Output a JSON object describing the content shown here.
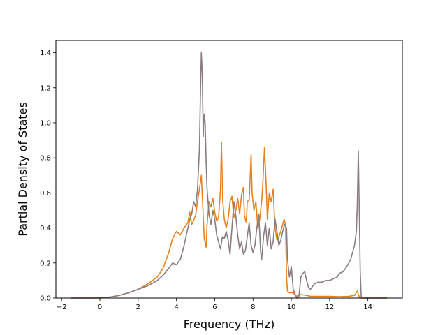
{
  "chart_data": {
    "type": "line",
    "title": "",
    "xlabel": "Frequency (THz)",
    "ylabel": "Partial Density of States",
    "xlim": [
      -2.3,
      15.8
    ],
    "ylim": [
      0,
      1.47
    ],
    "xticks": [
      -2,
      0,
      2,
      4,
      6,
      8,
      10,
      12,
      14
    ],
    "yticks": [
      0.0,
      0.2,
      0.4,
      0.6,
      0.8,
      1.0,
      1.2,
      1.4
    ],
    "xtick_labels": [
      "−2",
      "0",
      "2",
      "4",
      "6",
      "8",
      "10",
      "12",
      "14"
    ],
    "ytick_labels": [
      "0.0",
      "0.2",
      "0.4",
      "0.6",
      "0.8",
      "1.0",
      "1.2",
      "1.4"
    ],
    "grid": false,
    "legend": "none",
    "series": [
      {
        "color": "#e8801f",
        "points": [
          [
            -1.5,
            0.0
          ],
          [
            0.0,
            0.0
          ],
          [
            0.5,
            0.005
          ],
          [
            1.0,
            0.015
          ],
          [
            1.5,
            0.03
          ],
          [
            2.0,
            0.05
          ],
          [
            2.5,
            0.08
          ],
          [
            3.0,
            0.12
          ],
          [
            3.3,
            0.17
          ],
          [
            3.6,
            0.26
          ],
          [
            3.8,
            0.34
          ],
          [
            4.0,
            0.38
          ],
          [
            4.2,
            0.36
          ],
          [
            4.4,
            0.4
          ],
          [
            4.6,
            0.43
          ],
          [
            4.7,
            0.49
          ],
          [
            4.8,
            0.42
          ],
          [
            5.0,
            0.47
          ],
          [
            5.1,
            0.55
          ],
          [
            5.2,
            0.62
          ],
          [
            5.3,
            0.7
          ],
          [
            5.35,
            0.58
          ],
          [
            5.45,
            0.34
          ],
          [
            5.55,
            0.29
          ],
          [
            5.6,
            0.42
          ],
          [
            5.7,
            0.55
          ],
          [
            5.8,
            0.52
          ],
          [
            5.9,
            0.57
          ],
          [
            6.0,
            0.49
          ],
          [
            6.1,
            0.44
          ],
          [
            6.2,
            0.46
          ],
          [
            6.3,
            0.62
          ],
          [
            6.35,
            0.89
          ],
          [
            6.42,
            0.55
          ],
          [
            6.5,
            0.45
          ],
          [
            6.6,
            0.4
          ],
          [
            6.7,
            0.45
          ],
          [
            6.8,
            0.55
          ],
          [
            6.9,
            0.58
          ],
          [
            7.0,
            0.46
          ],
          [
            7.1,
            0.5
          ],
          [
            7.2,
            0.57
          ],
          [
            7.3,
            0.48
          ],
          [
            7.4,
            0.59
          ],
          [
            7.5,
            0.63
          ],
          [
            7.55,
            0.47
          ],
          [
            7.65,
            0.43
          ],
          [
            7.7,
            0.55
          ],
          [
            7.8,
            0.56
          ],
          [
            7.9,
            0.82
          ],
          [
            7.95,
            0.6
          ],
          [
            8.05,
            0.5
          ],
          [
            8.15,
            0.55
          ],
          [
            8.25,
            0.4
          ],
          [
            8.35,
            0.45
          ],
          [
            8.45,
            0.55
          ],
          [
            8.5,
            0.63
          ],
          [
            8.6,
            0.86
          ],
          [
            8.68,
            0.66
          ],
          [
            8.75,
            0.45
          ],
          [
            8.85,
            0.6
          ],
          [
            8.95,
            0.55
          ],
          [
            9.05,
            0.62
          ],
          [
            9.15,
            0.4
          ],
          [
            9.25,
            0.33
          ],
          [
            9.35,
            0.35
          ],
          [
            9.45,
            0.38
          ],
          [
            9.55,
            0.42
          ],
          [
            9.62,
            0.45
          ],
          [
            9.7,
            0.42
          ],
          [
            9.75,
            0.12
          ],
          [
            9.8,
            0.04
          ],
          [
            9.9,
            0.03
          ],
          [
            10.1,
            0.03
          ],
          [
            10.25,
            0.01
          ],
          [
            10.5,
            0.02
          ],
          [
            10.8,
            0.015
          ],
          [
            11.0,
            0.01
          ],
          [
            11.5,
            0.01
          ],
          [
            12.0,
            0.01
          ],
          [
            12.5,
            0.008
          ],
          [
            13.0,
            0.01
          ],
          [
            13.3,
            0.015
          ],
          [
            13.45,
            0.04
          ],
          [
            13.55,
            0.005
          ],
          [
            13.65,
            0.0
          ],
          [
            15.0,
            0.0
          ]
        ]
      },
      {
        "color": "#8b7c80",
        "points": [
          [
            -1.5,
            0.0
          ],
          [
            0.0,
            0.0
          ],
          [
            0.5,
            0.005
          ],
          [
            1.0,
            0.015
          ],
          [
            1.5,
            0.03
          ],
          [
            2.0,
            0.05
          ],
          [
            2.5,
            0.07
          ],
          [
            3.0,
            0.1
          ],
          [
            3.3,
            0.13
          ],
          [
            3.6,
            0.17
          ],
          [
            3.8,
            0.2
          ],
          [
            4.0,
            0.19
          ],
          [
            4.2,
            0.22
          ],
          [
            4.4,
            0.3
          ],
          [
            4.6,
            0.4
          ],
          [
            4.7,
            0.45
          ],
          [
            4.8,
            0.48
          ],
          [
            4.9,
            0.55
          ],
          [
            5.0,
            0.52
          ],
          [
            5.1,
            0.62
          ],
          [
            5.2,
            0.85
          ],
          [
            5.25,
            1.15
          ],
          [
            5.3,
            1.4
          ],
          [
            5.35,
            1.28
          ],
          [
            5.4,
            0.92
          ],
          [
            5.45,
            1.05
          ],
          [
            5.5,
            1.0
          ],
          [
            5.55,
            0.78
          ],
          [
            5.6,
            0.62
          ],
          [
            5.7,
            0.48
          ],
          [
            5.8,
            0.42
          ],
          [
            5.9,
            0.5
          ],
          [
            6.0,
            0.45
          ],
          [
            6.1,
            0.36
          ],
          [
            6.2,
            0.32
          ],
          [
            6.3,
            0.28
          ],
          [
            6.4,
            0.35
          ],
          [
            6.5,
            0.34
          ],
          [
            6.6,
            0.38
          ],
          [
            6.7,
            0.33
          ],
          [
            6.8,
            0.25
          ],
          [
            6.9,
            0.4
          ],
          [
            7.0,
            0.55
          ],
          [
            7.1,
            0.47
          ],
          [
            7.2,
            0.36
          ],
          [
            7.3,
            0.28
          ],
          [
            7.4,
            0.32
          ],
          [
            7.5,
            0.25
          ],
          [
            7.6,
            0.27
          ],
          [
            7.7,
            0.35
          ],
          [
            7.8,
            0.43
          ],
          [
            7.9,
            0.3
          ],
          [
            8.0,
            0.26
          ],
          [
            8.1,
            0.3
          ],
          [
            8.2,
            0.4
          ],
          [
            8.3,
            0.48
          ],
          [
            8.4,
            0.26
          ],
          [
            8.45,
            0.22
          ],
          [
            8.55,
            0.35
          ],
          [
            8.65,
            0.43
          ],
          [
            8.75,
            0.3
          ],
          [
            8.85,
            0.4
          ],
          [
            8.95,
            0.28
          ],
          [
            9.05,
            0.32
          ],
          [
            9.15,
            0.45
          ],
          [
            9.25,
            0.38
          ],
          [
            9.35,
            0.3
          ],
          [
            9.45,
            0.33
          ],
          [
            9.55,
            0.38
          ],
          [
            9.65,
            0.42
          ],
          [
            9.75,
            0.4
          ],
          [
            9.8,
            0.22
          ],
          [
            9.9,
            0.12
          ],
          [
            10.0,
            0.18
          ],
          [
            10.1,
            0.05
          ],
          [
            10.2,
            0.02
          ],
          [
            10.3,
            0.0
          ],
          [
            10.4,
            0.01
          ],
          [
            10.5,
            0.12
          ],
          [
            10.6,
            0.14
          ],
          [
            10.7,
            0.15
          ],
          [
            10.8,
            0.1
          ],
          [
            10.9,
            0.06
          ],
          [
            11.0,
            0.05
          ],
          [
            11.2,
            0.08
          ],
          [
            11.4,
            0.09
          ],
          [
            11.6,
            0.09
          ],
          [
            11.8,
            0.1
          ],
          [
            12.0,
            0.1
          ],
          [
            12.2,
            0.11
          ],
          [
            12.4,
            0.12
          ],
          [
            12.5,
            0.14
          ],
          [
            12.7,
            0.15
          ],
          [
            12.9,
            0.18
          ],
          [
            13.1,
            0.22
          ],
          [
            13.3,
            0.3
          ],
          [
            13.4,
            0.38
          ],
          [
            13.45,
            0.55
          ],
          [
            13.5,
            0.84
          ],
          [
            13.55,
            0.5
          ],
          [
            13.6,
            0.15
          ],
          [
            13.65,
            0.01
          ],
          [
            13.7,
            0.0
          ],
          [
            15.0,
            0.0
          ]
        ]
      }
    ]
  }
}
